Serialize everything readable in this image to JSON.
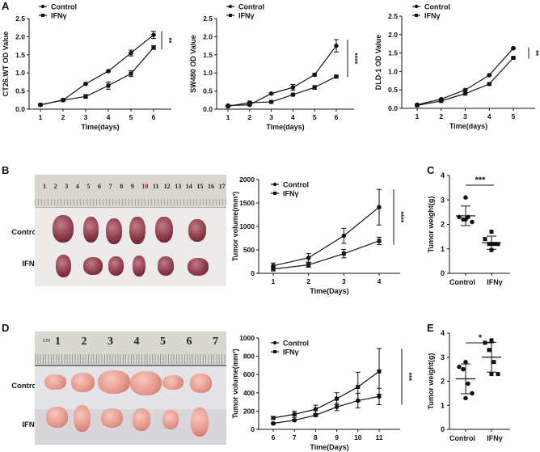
{
  "panels": {
    "A": "A",
    "B": "B",
    "C": "C",
    "D": "D",
    "E": "E"
  },
  "photos": {
    "B": {
      "ruler_numbers": [
        "1",
        "2",
        "3",
        "4",
        "5",
        "6",
        "7",
        "8",
        "9",
        "10",
        "11",
        "12",
        "13",
        "14",
        "15",
        "16",
        "17"
      ],
      "highlight_number": "10",
      "row_labels": [
        "Control",
        "IFNγ"
      ],
      "tumor_color": "#8e3b4a"
    },
    "D": {
      "ruler_unit": "cm",
      "ruler_numbers": [
        "1",
        "2",
        "3",
        "4",
        "5",
        "6",
        "7"
      ],
      "row_labels": [
        "Control",
        "IFNγ"
      ],
      "tumor_color": "#e79a8e"
    }
  },
  "chart_data": [
    {
      "id": "A1",
      "type": "line",
      "title": "",
      "xlabel": "Time(days)",
      "ylabel": "CT26.WT OD Value",
      "x": [
        1,
        2,
        3,
        4,
        5,
        6
      ],
      "ylim": [
        0,
        2.5
      ],
      "yticks": [
        0.0,
        0.5,
        1.0,
        1.5,
        2.0,
        2.5
      ],
      "ytick_decimals": 1,
      "legend": "top-left",
      "series": [
        {
          "name": "Control",
          "marker": "circle",
          "values": [
            0.12,
            0.25,
            0.7,
            1.05,
            1.55,
            2.05
          ],
          "err": [
            0.02,
            0.02,
            0.02,
            0.02,
            0.08,
            0.1
          ]
        },
        {
          "name": "IFNγ",
          "marker": "square",
          "values": [
            0.12,
            0.25,
            0.35,
            0.65,
            0.98,
            1.7
          ],
          "err": [
            0.02,
            0.02,
            0.05,
            0.1,
            0.08,
            0.05
          ]
        }
      ],
      "significance": "**"
    },
    {
      "id": "A2",
      "type": "line",
      "xlabel": "Time(days)",
      "ylabel": "SW480 OD Value",
      "x": [
        1,
        2,
        3,
        4,
        5,
        6
      ],
      "ylim": [
        0,
        2.5
      ],
      "yticks": [
        0.0,
        0.5,
        1.0,
        1.5,
        2.0,
        2.5
      ],
      "ytick_decimals": 1,
      "legend": "top-left",
      "series": [
        {
          "name": "Control",
          "marker": "circle",
          "values": [
            0.1,
            0.12,
            0.43,
            0.6,
            0.95,
            1.75
          ],
          "err": [
            0.01,
            0.02,
            0.02,
            0.08,
            0.04,
            0.17
          ]
        },
        {
          "name": "IFNγ",
          "marker": "square",
          "values": [
            0.08,
            0.18,
            0.2,
            0.4,
            0.6,
            0.9
          ],
          "err": [
            0.01,
            0.02,
            0.02,
            0.02,
            0.05,
            0.02
          ]
        }
      ],
      "significance": "****"
    },
    {
      "id": "A3",
      "type": "line",
      "xlabel": "Time(days)",
      "ylabel": "DLD-1 OD Value",
      "x": [
        1,
        2,
        3,
        4,
        5
      ],
      "ylim": [
        0,
        2.5
      ],
      "yticks": [
        0.0,
        0.5,
        1.0,
        1.5,
        2.0,
        2.5
      ],
      "ytick_decimals": 1,
      "legend": "top-left",
      "series": [
        {
          "name": "Control",
          "marker": "circle",
          "values": [
            0.1,
            0.25,
            0.5,
            0.9,
            1.63
          ],
          "err": [
            0.01,
            0.01,
            0.02,
            0.02,
            0.02
          ]
        },
        {
          "name": "IFNγ",
          "marker": "square",
          "values": [
            0.08,
            0.2,
            0.4,
            0.66,
            1.37
          ],
          "err": [
            0.01,
            0.01,
            0.02,
            0.02,
            0.02
          ]
        }
      ],
      "significance": "**"
    },
    {
      "id": "B",
      "type": "line",
      "xlabel": "Time(Days)",
      "ylabel": "Tumor volume(mm³)",
      "x": [
        1,
        2,
        3,
        4
      ],
      "ylim": [
        0,
        2000
      ],
      "yticks": [
        0,
        500,
        1000,
        1500,
        2000
      ],
      "ytick_decimals": 0,
      "legend": "top-left",
      "series": [
        {
          "name": "Control",
          "marker": "circle",
          "values": [
            160,
            330,
            800,
            1410
          ],
          "err": [
            60,
            90,
            160,
            380
          ]
        },
        {
          "name": "IFNγ",
          "marker": "square",
          "values": [
            90,
            180,
            420,
            690
          ],
          "err": [
            40,
            50,
            90,
            80
          ]
        }
      ],
      "significance": "****"
    },
    {
      "id": "C",
      "type": "scatter",
      "xlabel": "",
      "ylabel": "Tumor weight(g)",
      "categories": [
        "Control",
        "IFNγ"
      ],
      "ylim": [
        0,
        4
      ],
      "yticks": [
        0,
        1,
        2,
        3,
        4
      ],
      "groups": [
        {
          "name": "Control",
          "marker": "circle",
          "points": [
            3.1,
            2.3,
            2.2,
            2.3,
            2.1,
            2.2
          ],
          "mean": 2.35,
          "sd": 0.4
        },
        {
          "name": "IFNγ",
          "marker": "square",
          "points": [
            1.7,
            1.4,
            1.2,
            1.2,
            1.2,
            0.95
          ],
          "mean": 1.25,
          "sd": 0.27
        }
      ],
      "significance": "***"
    },
    {
      "id": "D",
      "type": "line",
      "xlabel": "Time(Days)",
      "ylabel": "Tumor volume(mm³)",
      "x": [
        6,
        7,
        8,
        9,
        10,
        11
      ],
      "ylim": [
        0,
        1000
      ],
      "yticks": [
        0,
        200,
        400,
        600,
        800,
        1000
      ],
      "ytick_decimals": 0,
      "legend": "top-left",
      "series": [
        {
          "name": "Control",
          "marker": "circle",
          "values": [
            65,
            100,
            155,
            245,
            315,
            360
          ],
          "err": [
            10,
            10,
            15,
            40,
            80,
            90
          ]
        },
        {
          "name": "IFNγ",
          "marker": "square",
          "values": [
            125,
            165,
            220,
            335,
            465,
            635
          ],
          "err": [
            15,
            35,
            45,
            65,
            160,
            250
          ]
        }
      ],
      "significance": "***"
    },
    {
      "id": "E",
      "type": "scatter",
      "xlabel": "",
      "ylabel": "Tumor weight(g)",
      "categories": [
        "Control",
        "IFNγ"
      ],
      "ylim": [
        0,
        4
      ],
      "yticks": [
        0,
        1,
        2,
        3,
        4
      ],
      "groups": [
        {
          "name": "Control",
          "marker": "circle",
          "points": [
            2.8,
            2.6,
            2.5,
            1.9,
            1.5,
            1.3
          ],
          "mean": 2.1,
          "sd": 0.62
        },
        {
          "name": "IFNγ",
          "marker": "square",
          "points": [
            3.7,
            3.6,
            3.3,
            2.8,
            2.3,
            2.3
          ],
          "mean": 3.0,
          "sd": 0.62
        }
      ],
      "significance": "*"
    }
  ]
}
